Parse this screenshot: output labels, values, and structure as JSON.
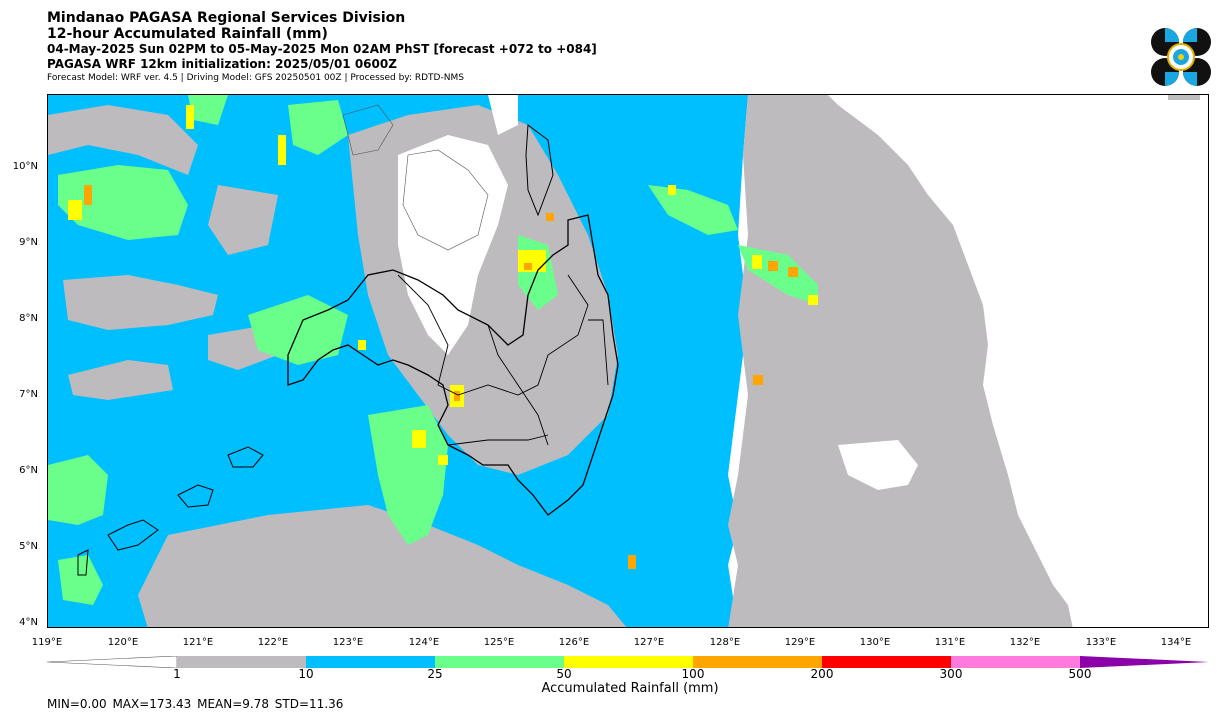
{
  "header": {
    "line1": "Mindanao PAGASA Regional Services Division",
    "line2": "12-hour Accumulated Rainfall (mm)",
    "line3": "04-May-2025 Sun 02PM to 05-May-2025 Mon 02AM PhST [forecast +072 to +084]",
    "line4": "PAGASA WRF 12km initialization: 2025/05/01 0600Z",
    "line5": "Forecast Model: WRF ver. 4.5 | Driving Model: GFS 20250501 00Z | Processed by: RDTD-NMS"
  },
  "map": {
    "lat_ticks": [
      "10°N",
      "9°N",
      "8°N",
      "7°N",
      "6°N",
      "5°N",
      "4°N"
    ],
    "lon_ticks": [
      "119°E",
      "120°E",
      "121°E",
      "122°E",
      "123°E",
      "124°E",
      "125°E",
      "126°E",
      "127°E",
      "128°E",
      "129°E",
      "130°E",
      "131°E",
      "132°E",
      "133°E",
      "134°E"
    ]
  },
  "colorbar": {
    "labels": [
      "1",
      "10",
      "25",
      "50",
      "100",
      "200",
      "300",
      "500"
    ],
    "colors": [
      "#bdbbbd",
      "#00bfff",
      "#6aff8a",
      "#ffff00",
      "#ffa500",
      "#ff0000",
      "#ff7adf",
      "#8b00a8"
    ],
    "title": "Accumulated Rainfall (mm)"
  },
  "stats": {
    "text": "MIN=0.00   MAX=173.43   MEAN=9.78   STD=11.36"
  }
}
